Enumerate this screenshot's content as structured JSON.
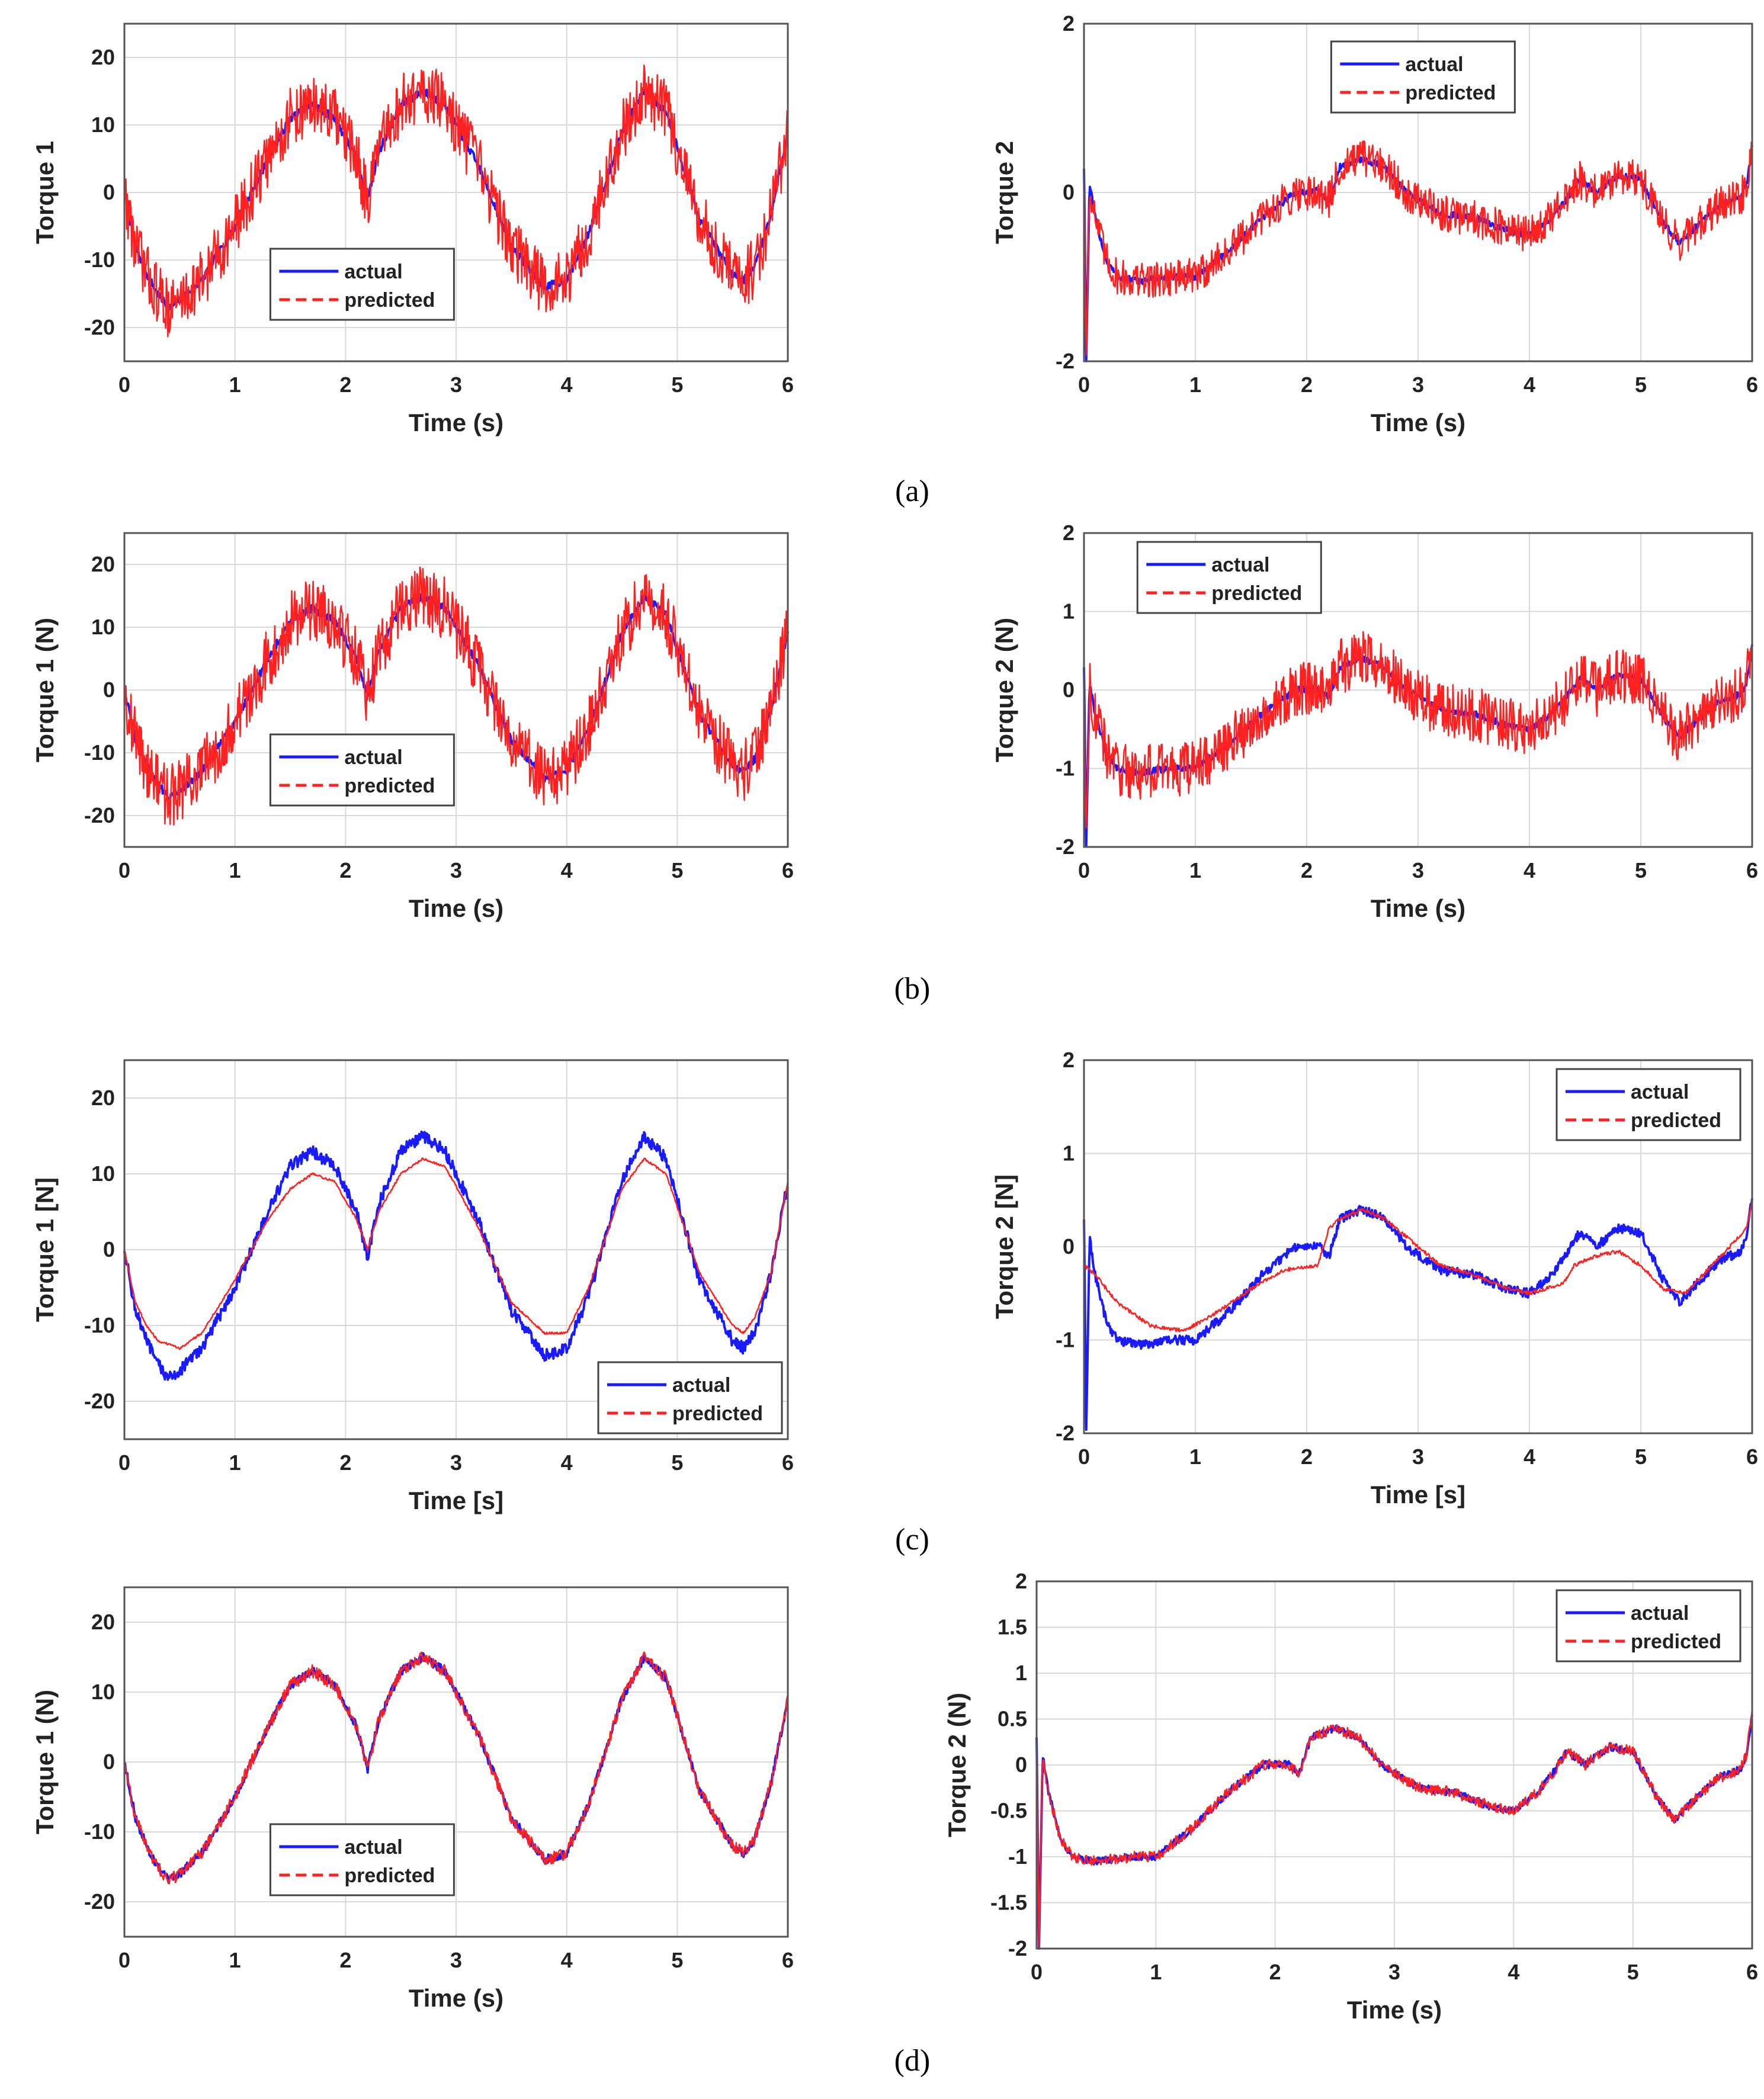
{
  "captions": [
    "(a)",
    "(b)",
    "(c)",
    "(d)"
  ],
  "colors": {
    "actual": "#1a1aff",
    "predicted": "#ff2020",
    "grid": "#d9d9d9",
    "frame": "#555555"
  },
  "chart_data": [
    {
      "id": "a1",
      "type": "line",
      "title": "",
      "xlabel": "Time (s)",
      "ylabel": "Torque 1",
      "xlim": [
        0,
        6
      ],
      "ylim": [
        -25,
        25
      ],
      "xticks": [
        0,
        1,
        2,
        3,
        4,
        5,
        6
      ],
      "yticks": [
        -20,
        -10,
        0,
        10,
        20
      ],
      "legend": {
        "position": "lower-center",
        "entries": [
          "actual",
          "predicted"
        ]
      },
      "series": [
        {
          "name": "actual",
          "signal": "t1",
          "noise": 0.6
        },
        {
          "name": "predicted",
          "signal": "t1",
          "noise": 4.5
        }
      ]
    },
    {
      "id": "a2",
      "type": "line",
      "title": "",
      "xlabel": "Time (s)",
      "ylabel": "Torque 2",
      "xlim": [
        0,
        6
      ],
      "ylim": [
        -2,
        2
      ],
      "xticks": [
        0,
        1,
        2,
        3,
        4,
        5,
        6
      ],
      "yticks": [
        -2,
        0,
        2
      ],
      "legend": {
        "position": "top-center",
        "entries": [
          "actual",
          "predicted"
        ]
      },
      "series": [
        {
          "name": "actual",
          "signal": "t2",
          "noise": 0.04
        },
        {
          "name": "predicted",
          "signal": "t2",
          "noise": 0.22
        }
      ]
    },
    {
      "id": "b1",
      "type": "line",
      "title": "",
      "xlabel": "Time (s)",
      "ylabel": "Torque 1 (N)",
      "xlim": [
        0,
        6
      ],
      "ylim": [
        -25,
        25
      ],
      "xticks": [
        0,
        1,
        2,
        3,
        4,
        5,
        6
      ],
      "yticks": [
        -20,
        -10,
        0,
        10,
        20
      ],
      "legend": {
        "position": "lower-center",
        "entries": [
          "actual",
          "predicted"
        ]
      },
      "series": [
        {
          "name": "actual",
          "signal": "t1",
          "noise": 0.6
        },
        {
          "name": "predicted",
          "signal": "t1",
          "noise": 5.0
        }
      ]
    },
    {
      "id": "b2",
      "type": "line",
      "title": "",
      "xlabel": "Time (s)",
      "ylabel": "Torque 2 (N)",
      "xlim": [
        0,
        6
      ],
      "ylim": [
        -2,
        2
      ],
      "xticks": [
        0,
        1,
        2,
        3,
        4,
        5,
        6
      ],
      "yticks": [
        -2,
        -1,
        0,
        1,
        2
      ],
      "legend": {
        "position": "top-left",
        "entries": [
          "actual",
          "predicted"
        ]
      },
      "series": [
        {
          "name": "actual",
          "signal": "t2",
          "noise": 0.04
        },
        {
          "name": "predicted",
          "signal": "t2",
          "noise": 0.35
        }
      ]
    },
    {
      "id": "c1",
      "type": "line",
      "title": "",
      "xlabel": "Time [s]",
      "ylabel": "Torque 1 [N]",
      "xlim": [
        0,
        6
      ],
      "ylim": [
        -25,
        25
      ],
      "xticks": [
        0,
        1,
        2,
        3,
        4,
        5,
        6
      ],
      "yticks": [
        -20,
        -10,
        0,
        10,
        20
      ],
      "legend": {
        "position": "bottom-right",
        "entries": [
          "actual",
          "predicted"
        ]
      },
      "series": [
        {
          "name": "actual",
          "signal": "t1",
          "noise": 0.8
        },
        {
          "name": "predicted",
          "signal": "t1s",
          "noise": 0.15
        }
      ]
    },
    {
      "id": "c2",
      "type": "line",
      "title": "",
      "xlabel": "Time [s]",
      "ylabel": "Torque 2 [N]",
      "xlim": [
        0,
        6
      ],
      "ylim": [
        -2,
        2
      ],
      "xticks": [
        0,
        1,
        2,
        3,
        4,
        5,
        6
      ],
      "yticks": [
        -2,
        -1,
        0,
        1,
        2
      ],
      "legend": {
        "position": "top-right",
        "entries": [
          "actual",
          "predicted"
        ]
      },
      "series": [
        {
          "name": "actual",
          "signal": "t2",
          "noise": 0.05
        },
        {
          "name": "predicted",
          "signal": "t2s",
          "noise": 0.02
        }
      ]
    },
    {
      "id": "d1",
      "type": "line",
      "title": "",
      "xlabel": "Time (s)",
      "ylabel": "Torque 1 (N)",
      "xlim": [
        0,
        6
      ],
      "ylim": [
        -25,
        25
      ],
      "xticks": [
        0,
        1,
        2,
        3,
        4,
        5,
        6
      ],
      "yticks": [
        -20,
        -10,
        0,
        10,
        20
      ],
      "legend": {
        "position": "lower-center",
        "entries": [
          "actual",
          "predicted"
        ]
      },
      "series": [
        {
          "name": "actual",
          "signal": "t1",
          "noise": 0.6
        },
        {
          "name": "predicted",
          "signal": "t1",
          "noise": 0.9
        }
      ]
    },
    {
      "id": "d2",
      "type": "line",
      "title": "",
      "xlabel": "Time (s)",
      "ylabel": "Torque 2 (N)",
      "xlim": [
        0,
        6
      ],
      "ylim": [
        -2,
        2
      ],
      "xticks": [
        0,
        1,
        2,
        3,
        4,
        5,
        6
      ],
      "yticks": [
        -2,
        -1.5,
        -1,
        -0.5,
        0,
        0.5,
        1,
        1.5,
        2
      ],
      "legend": {
        "position": "top-right",
        "entries": [
          "actual",
          "predicted"
        ]
      },
      "series": [
        {
          "name": "actual",
          "signal": "t2",
          "noise": 0.04
        },
        {
          "name": "predicted",
          "signal": "t2",
          "noise": 0.06
        }
      ]
    }
  ],
  "signals": {
    "t1": {
      "t": [
        0,
        0.1,
        0.2,
        0.3,
        0.4,
        0.5,
        0.7,
        1.0,
        1.3,
        1.5,
        1.7,
        1.9,
        2.1,
        2.2,
        2.3,
        2.5,
        2.7,
        2.9,
        3.2,
        3.5,
        3.8,
        4.0,
        4.2,
        4.5,
        4.7,
        4.9,
        5.2,
        5.5,
        5.6,
        5.7,
        5.85,
        6.0
      ],
      "v": [
        0,
        -8,
        -12,
        -15,
        -17,
        -16,
        -13,
        -5,
        5,
        11,
        13,
        11,
        5,
        -1,
        6,
        13,
        15,
        13,
        4,
        -8,
        -14,
        -13,
        -6,
        9,
        15,
        12,
        -4,
        -12,
        -13,
        -11,
        -3,
        9
      ]
    },
    "t1s": {
      "t": [
        0,
        0.1,
        0.2,
        0.3,
        0.5,
        0.7,
        1.0,
        1.3,
        1.5,
        1.7,
        1.9,
        2.1,
        2.2,
        2.3,
        2.5,
        2.7,
        2.9,
        3.2,
        3.5,
        3.8,
        4.0,
        4.2,
        4.5,
        4.7,
        4.9,
        5.2,
        5.5,
        5.6,
        5.7,
        5.85,
        6.0
      ],
      "v": [
        0,
        -7,
        -10,
        -12,
        -13,
        -11,
        -4,
        4,
        8,
        10,
        9,
        4,
        0,
        5,
        10,
        12,
        11,
        3,
        -7,
        -11,
        -11,
        -5,
        8,
        12,
        10,
        -3,
        -10,
        -11,
        -9,
        -3,
        9
      ]
    },
    "t2": {
      "t": [
        0,
        0.02,
        0.05,
        0.1,
        0.2,
        0.3,
        0.5,
        0.8,
        1.0,
        1.3,
        1.6,
        1.9,
        2.1,
        2.2,
        2.3,
        2.5,
        2.7,
        2.9,
        3.2,
        3.5,
        3.8,
        4.0,
        4.2,
        4.35,
        4.45,
        4.6,
        4.8,
        5.0,
        5.2,
        5.35,
        5.5,
        5.7,
        5.9,
        5.95,
        6.0
      ],
      "v": [
        0.3,
        -2,
        0.1,
        -0.3,
        -0.8,
        -1.0,
        -1.05,
        -1.0,
        -1.0,
        -0.7,
        -0.3,
        0.0,
        0.02,
        -0.1,
        0.3,
        0.4,
        0.3,
        0.0,
        -0.25,
        -0.3,
        -0.45,
        -0.5,
        -0.3,
        -0.05,
        0.15,
        0.0,
        0.2,
        0.15,
        -0.35,
        -0.6,
        -0.4,
        -0.15,
        -0.05,
        0.1,
        0.55
      ]
    },
    "t2s": {
      "t": [
        0,
        0.1,
        0.3,
        0.6,
        0.9,
        1.2,
        1.5,
        1.8,
        2.1,
        2.2,
        2.3,
        2.5,
        2.7,
        2.9,
        3.2,
        3.5,
        3.8,
        4.0,
        4.3,
        4.4,
        4.6,
        4.8,
        5.0,
        5.2,
        5.4,
        5.6,
        5.8,
        5.95,
        6.0
      ],
      "v": [
        -0.2,
        -0.3,
        -0.6,
        -0.85,
        -0.9,
        -0.7,
        -0.45,
        -0.25,
        -0.2,
        0.2,
        0.3,
        0.4,
        0.3,
        0.1,
        -0.2,
        -0.3,
        -0.45,
        -0.5,
        -0.4,
        -0.2,
        -0.1,
        -0.05,
        -0.2,
        -0.45,
        -0.5,
        -0.25,
        0.0,
        0.2,
        0.5
      ]
    }
  }
}
